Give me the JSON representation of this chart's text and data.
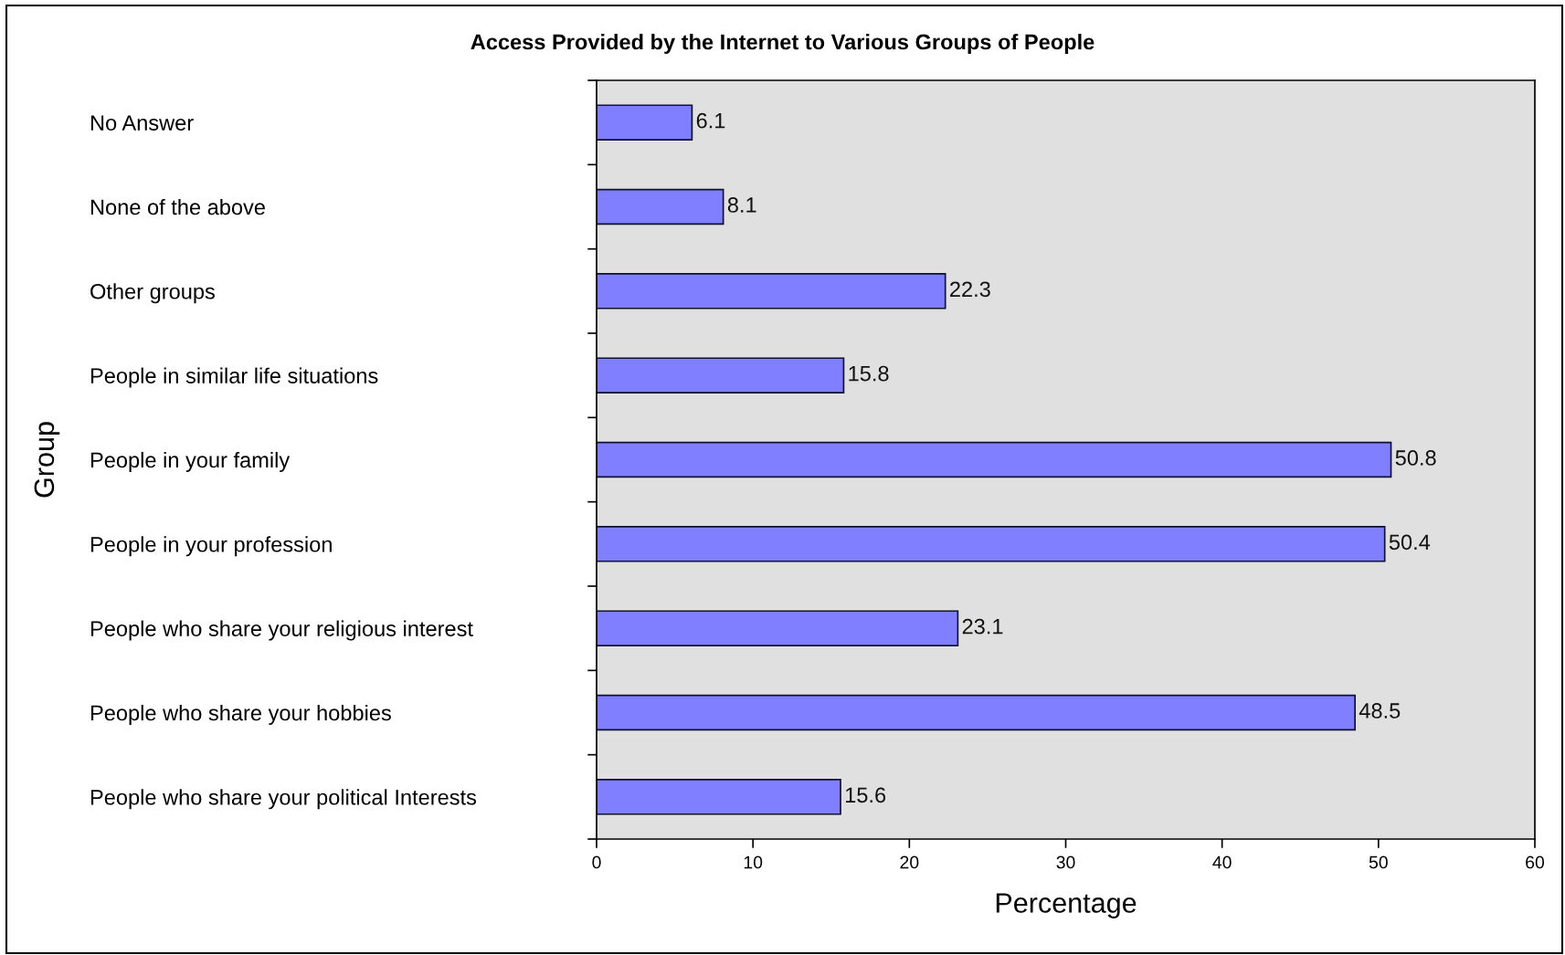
{
  "chart_data": {
    "type": "bar",
    "orientation": "horizontal",
    "title": "Access Provided by the Internet to Various Groups of People",
    "xlabel": "Percentage",
    "ylabel": "Group",
    "categories": [
      "No Answer",
      "None of the above",
      "Other groups",
      "People in similar life situations",
      "People in your family",
      "People in your profession",
      "People who share your religious interest",
      "People who share your hobbies",
      "People who share your political Interests"
    ],
    "values": [
      6.1,
      8.1,
      22.3,
      15.8,
      50.8,
      50.4,
      23.1,
      48.5,
      15.6
    ],
    "color": "#7f7fff",
    "xlim": [
      0,
      60
    ],
    "xticks": [
      0,
      10,
      20,
      30,
      40,
      50,
      60
    ],
    "data_labels": true
  }
}
